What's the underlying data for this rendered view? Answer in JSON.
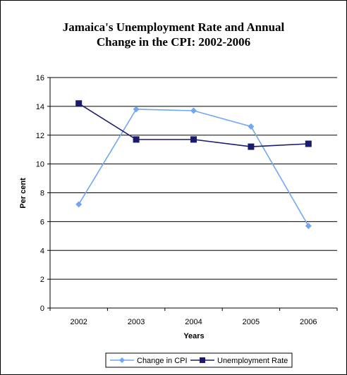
{
  "chart_data": {
    "type": "line",
    "title_lines": [
      "Jamaica's Unemployment Rate and Annual",
      "Change in the CPI: 2002-2006"
    ],
    "xlabel": "Years",
    "ylabel": "Per cent",
    "categories": [
      "2002",
      "2003",
      "2004",
      "2005",
      "2006"
    ],
    "ylim": [
      0,
      16
    ],
    "yticks": [
      "0",
      "2",
      "4",
      "6",
      "8",
      "10",
      "12",
      "14",
      "16"
    ],
    "grid": true,
    "legend": "bottom",
    "series": [
      {
        "name": "Change in CPI",
        "values": [
          7.2,
          13.8,
          13.7,
          12.6,
          5.7
        ],
        "color": "#6fa8f0",
        "marker": "diamond"
      },
      {
        "name": "Unemployment Rate",
        "values": [
          14.2,
          11.7,
          11.7,
          11.2,
          11.4
        ],
        "color": "#1a1a6e",
        "marker": "square"
      }
    ]
  }
}
